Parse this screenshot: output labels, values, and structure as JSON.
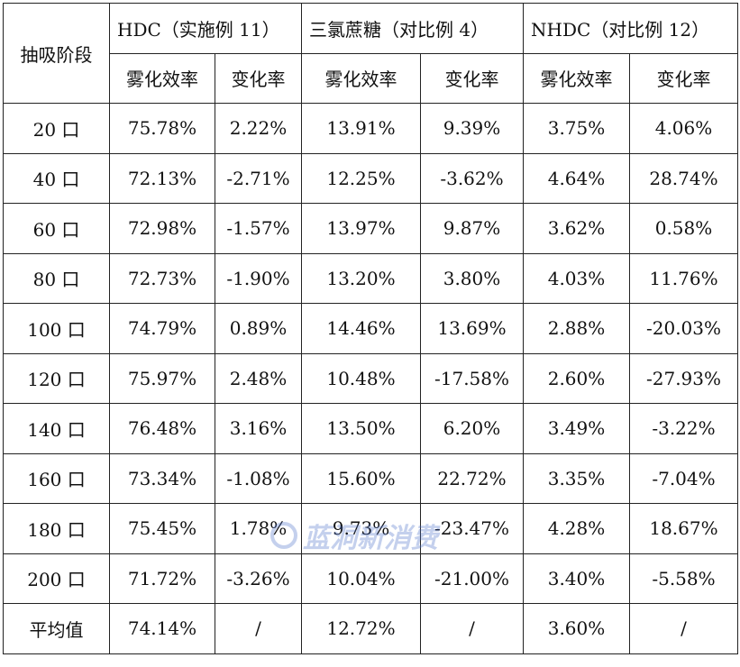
{
  "header": {
    "stage": "抽吸阶段",
    "groups": [
      "HDC（实施例 11）",
      "三氯蔗糖（对比例 4）",
      "NHDC（对比例 12）"
    ],
    "sub": [
      "雾化效率",
      "变化率",
      "雾化效率",
      "变化率",
      "雾化效率",
      "变化率"
    ]
  },
  "rows": [
    [
      "20 口",
      "75.78%",
      "2.22%",
      "13.91%",
      "9.39%",
      "3.75%",
      "4.06%"
    ],
    [
      "40 口",
      "72.13%",
      "-2.71%",
      "12.25%",
      "-3.62%",
      "4.64%",
      "28.74%"
    ],
    [
      "60 口",
      "72.98%",
      "-1.57%",
      "13.97%",
      "9.87%",
      "3.62%",
      "0.58%"
    ],
    [
      "80 口",
      "72.73%",
      "-1.90%",
      "13.20%",
      "3.80%",
      "4.03%",
      "11.76%"
    ],
    [
      "100 口",
      "74.79%",
      "0.89%",
      "14.46%",
      "13.69%",
      "2.88%",
      "-20.03%"
    ],
    [
      "120 口",
      "75.97%",
      "2.48%",
      "10.48%",
      "-17.58%",
      "2.60%",
      "-27.93%"
    ],
    [
      "140 口",
      "76.48%",
      "3.16%",
      "13.50%",
      "6.20%",
      "3.49%",
      "-3.22%"
    ],
    [
      "160 口",
      "73.34%",
      "-1.08%",
      "15.60%",
      "22.72%",
      "3.35%",
      "-7.04%"
    ],
    [
      "180 口",
      "75.45%",
      "1.78%",
      "9.73%",
      "-23.47%",
      "4.28%",
      "18.67%"
    ],
    [
      "200 口",
      "71.72%",
      "-3.26%",
      "10.04%",
      "-21.00%",
      "3.40%",
      "-5.58%"
    ],
    [
      "平均值",
      "74.14%",
      "/",
      "12.72%",
      "/",
      "3.60%",
      "/"
    ]
  ],
  "watermark": {
    "text": "蓝洞新消费",
    "color": "#466ec8"
  }
}
